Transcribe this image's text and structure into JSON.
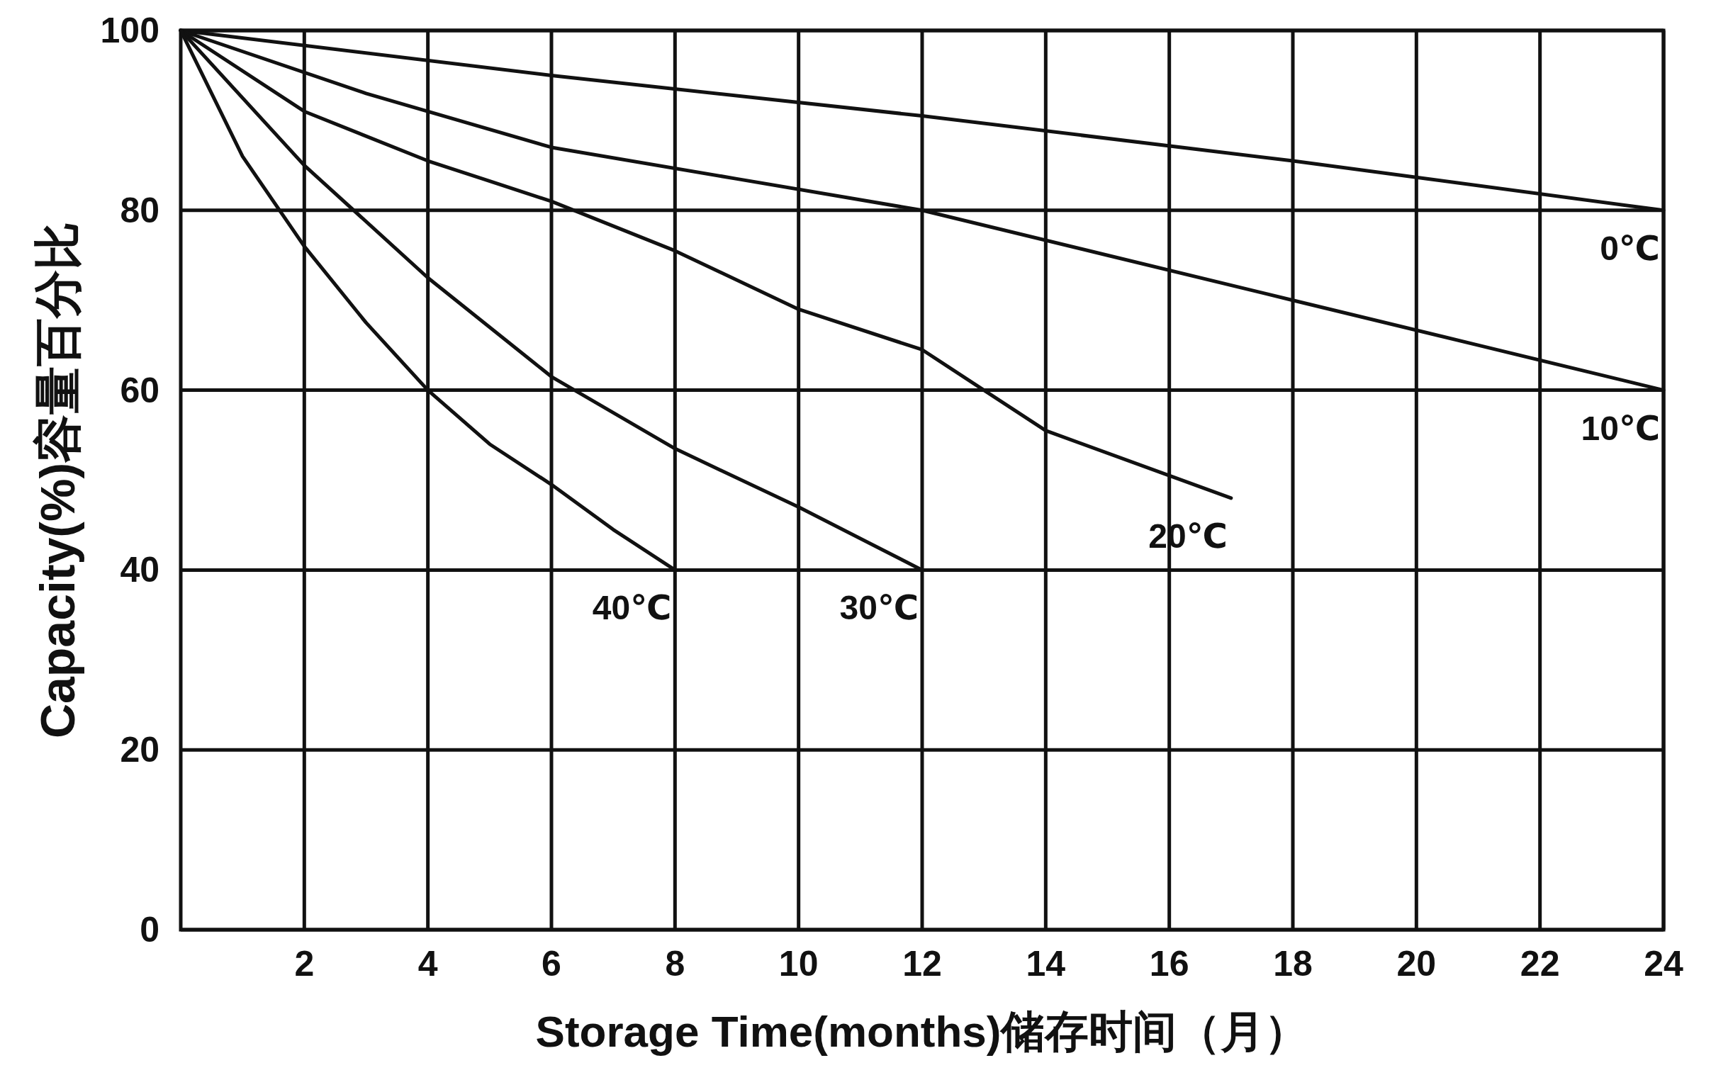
{
  "chart_data": {
    "type": "line",
    "xlabel": "Storage Time(months)储存时间（月）",
    "ylabel": "Capacity(%)容量百分比",
    "xlim": [
      0,
      24
    ],
    "ylim": [
      0,
      100
    ],
    "xticks": [
      2,
      4,
      6,
      8,
      10,
      12,
      14,
      16,
      18,
      20,
      22,
      24
    ],
    "yticks": [
      0,
      20,
      40,
      60,
      80,
      100
    ],
    "grid": true,
    "series": [
      {
        "name": "0℃",
        "color": "#111111",
        "x": [
          0,
          6,
          12,
          18,
          24
        ],
        "values": [
          100,
          95,
          90.5,
          85.5,
          80
        ]
      },
      {
        "name": "10℃",
        "color": "#111111",
        "x": [
          0,
          3,
          6,
          9,
          12,
          15,
          18,
          21,
          24
        ],
        "values": [
          100,
          93,
          87,
          83.5,
          80,
          75,
          70,
          65,
          60
        ]
      },
      {
        "name": "20℃",
        "color": "#111111",
        "x": [
          0,
          2,
          4,
          6,
          8,
          10,
          12,
          13,
          14,
          16,
          17
        ],
        "values": [
          100,
          91,
          85.5,
          81,
          75.5,
          69,
          64.5,
          60,
          55.5,
          50.5,
          48
        ]
      },
      {
        "name": "30℃",
        "color": "#111111",
        "x": [
          0,
          2,
          4,
          6,
          8,
          10,
          12
        ],
        "values": [
          100,
          85,
          72.5,
          61.5,
          53.5,
          47,
          40
        ]
      },
      {
        "name": "40℃",
        "color": "#111111",
        "x": [
          0,
          1,
          2,
          3,
          4,
          5,
          6,
          7,
          8
        ],
        "values": [
          100,
          86,
          76,
          67.5,
          60,
          54,
          49.5,
          44.5,
          40
        ]
      }
    ]
  }
}
